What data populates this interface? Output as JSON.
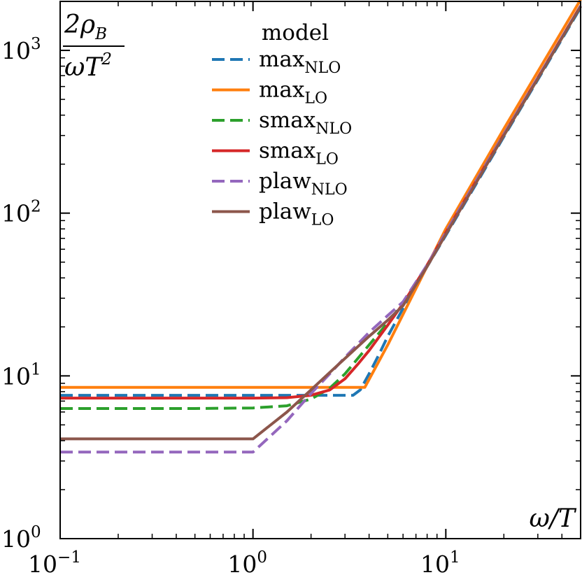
{
  "chart_data": {
    "type": "line",
    "title": "",
    "xscale": "log",
    "yscale": "log",
    "xlim": [
      0.1,
      50
    ],
    "ylim": [
      1,
      2000
    ],
    "xlabel": "ω/T",
    "ylabel": {
      "numerator": "2ρ",
      "numerator_sub": "B",
      "denominator": "ωT",
      "denominator_sup": "2"
    },
    "x_ticks": [
      {
        "base": "10",
        "exp": "−1"
      },
      {
        "base": "10",
        "exp": "0"
      },
      {
        "base": "10",
        "exp": "1"
      }
    ],
    "y_ticks": [
      {
        "base": "10",
        "exp": "0"
      },
      {
        "base": "10",
        "exp": "1"
      },
      {
        "base": "10",
        "exp": "2"
      },
      {
        "base": "10",
        "exp": "3"
      }
    ],
    "legend": {
      "title": "model",
      "location": "top-center"
    },
    "series": [
      {
        "name": "max",
        "sub": "NLO",
        "color": "#1f77b4",
        "dash": "dashed",
        "x": [
          0.1,
          1,
          2,
          3,
          3.3,
          3.6,
          4,
          4.5,
          5,
          6,
          8,
          10,
          15,
          20,
          30,
          50
        ],
        "y": [
          7.6,
          7.6,
          7.6,
          7.6,
          7.6,
          8.2,
          10.3,
          13.5,
          17.5,
          26,
          47,
          73,
          165,
          295,
          660,
          1830
        ]
      },
      {
        "name": "max",
        "sub": "LO",
        "color": "#ff7f0e",
        "dash": "solid",
        "x": [
          0.1,
          1,
          2,
          3,
          3.8,
          5,
          10,
          20,
          50
        ],
        "y": [
          8.5,
          8.5,
          8.5,
          8.5,
          8.5,
          15.5,
          80,
          330,
          2050
        ]
      },
      {
        "name": "smax",
        "sub": "NLO",
        "color": "#2ca02c",
        "dash": "dashed",
        "x": [
          0.1,
          0.5,
          1,
          1.5,
          2,
          2.5,
          3,
          3.5,
          4,
          5,
          6,
          8,
          10,
          15,
          20,
          30,
          50
        ],
        "y": [
          6.3,
          6.3,
          6.35,
          6.55,
          7.2,
          8.4,
          10.3,
          12.8,
          15.5,
          21.2,
          28,
          48,
          75,
          170,
          300,
          670,
          1860
        ]
      },
      {
        "name": "smax",
        "sub": "LO",
        "color": "#d62728",
        "dash": "solid",
        "x": [
          0.1,
          1,
          1.5,
          2,
          2.5,
          3,
          3.5,
          4,
          5,
          6,
          8,
          10,
          15,
          20,
          30,
          50
        ],
        "y": [
          7.3,
          7.3,
          7.35,
          7.6,
          8.2,
          9.6,
          11.8,
          14.3,
          20.5,
          27.8,
          48,
          76,
          172,
          305,
          680,
          1880
        ]
      },
      {
        "name": "plaw",
        "sub": "NLO",
        "color": "#9467bd",
        "dash": "dashed",
        "x": [
          0.1,
          1,
          1.5,
          2,
          2.5,
          3,
          4,
          5,
          6,
          8,
          10,
          15,
          20,
          30,
          50
        ],
        "y": [
          3.4,
          3.4,
          5.3,
          7.8,
          10.3,
          13,
          18.5,
          23.5,
          28.5,
          48,
          76,
          172,
          305,
          680,
          1880
        ]
      },
      {
        "name": "plaw",
        "sub": "LO",
        "color": "#8c564b",
        "dash": "solid",
        "x": [
          0.1,
          1,
          1.5,
          2,
          2.5,
          3,
          4,
          5,
          6,
          8,
          10,
          15,
          20,
          30,
          50
        ],
        "y": [
          4.1,
          4.1,
          6.0,
          8.2,
          10.5,
          12.8,
          17.5,
          22,
          27,
          47,
          74,
          168,
          300,
          670,
          1860
        ]
      }
    ]
  }
}
